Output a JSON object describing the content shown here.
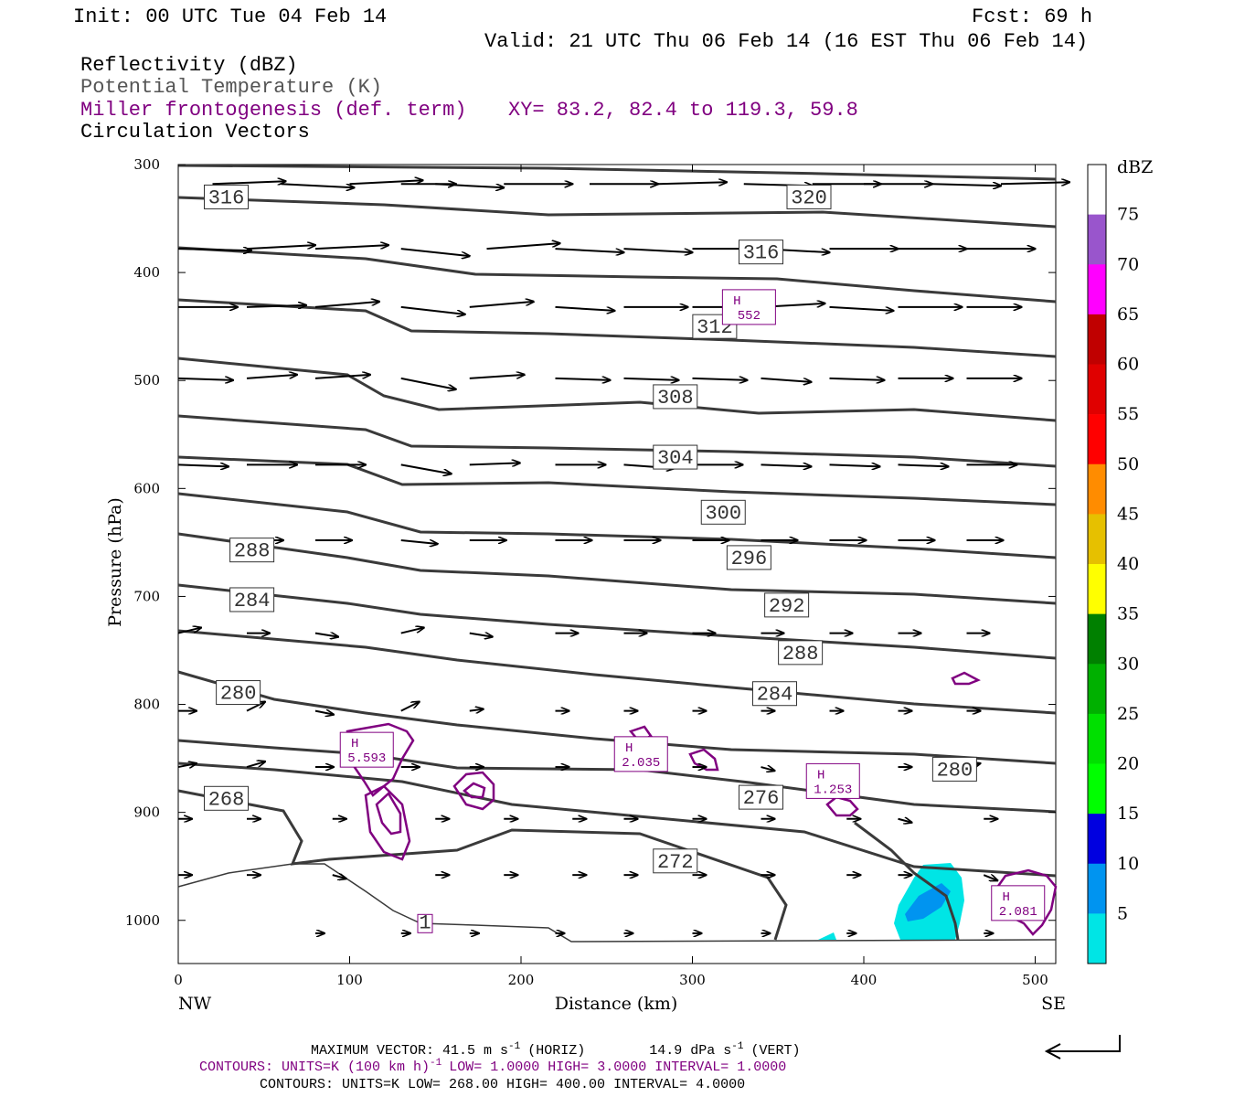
{
  "header": {
    "init": "Init: 00 UTC Tue 04 Feb 14",
    "fcst": "Fcst:   69 h",
    "valid": "Valid: 21 UTC Thu 06 Feb 14 (16 EST Thu 06 Feb 14)",
    "field1": "Reflectivity (dBZ)",
    "field2": "Potential Temperature (K)",
    "field3": "Miller frontogenesis (def. term)",
    "xy": "XY=  83.2, 82.4 to 119.3, 59.8",
    "field4": "Circulation Vectors"
  },
  "colors": {
    "theta": "#3a3a3a",
    "fronto": "#800080",
    "ref_light": "#00e5e5",
    "ref_mid": "#0094f0"
  },
  "chart_data": {
    "type": "cross-section",
    "xlabel": "Distance (km)",
    "ylabel": "Pressure (hPa)",
    "x_ticks": [
      "0",
      "100",
      "200",
      "300",
      "400",
      "500"
    ],
    "y_ticks": [
      "300",
      "400",
      "500",
      "600",
      "700",
      "800",
      "900",
      "1000"
    ],
    "xlim": [
      0,
      512
    ],
    "ylim": [
      300,
      1040
    ],
    "left_end": "NW",
    "right_end": "SE",
    "colorbar": {
      "unit": "dBZ",
      "labels": [
        "75",
        "70",
        "65",
        "60",
        "55",
        "50",
        "45",
        "40",
        "35",
        "30",
        "25",
        "20",
        "15",
        "10",
        "5"
      ],
      "colors": [
        "#ffffff",
        "#9955cc",
        "#ff00ff",
        "#c00000",
        "#e00000",
        "#ff0000",
        "#ff8c00",
        "#e6c000",
        "#ffff00",
        "#008000",
        "#00b000",
        "#00e000",
        "#00ff00",
        "#0000e0",
        "#0094f0",
        "#00e5e5",
        "#ffffff"
      ]
    },
    "theta_labels": [
      {
        "text": "316",
        "x": 28,
        "p": 330
      },
      {
        "text": "320",
        "x": 368,
        "p": 330
      },
      {
        "text": "316",
        "x": 340,
        "p": 381
      },
      {
        "text": "312",
        "x": 313,
        "p": 450
      },
      {
        "text": "308",
        "x": 290,
        "p": 515
      },
      {
        "text": "304",
        "x": 290,
        "p": 571
      },
      {
        "text": "300",
        "x": 318,
        "p": 622
      },
      {
        "text": "296",
        "x": 333,
        "p": 664
      },
      {
        "text": "288",
        "x": 43,
        "p": 657
      },
      {
        "text": "292",
        "x": 355,
        "p": 708
      },
      {
        "text": "284",
        "x": 43,
        "p": 703
      },
      {
        "text": "288",
        "x": 363,
        "p": 752
      },
      {
        "text": "284",
        "x": 348,
        "p": 790
      },
      {
        "text": "280",
        "x": 35,
        "p": 789
      },
      {
        "text": "280",
        "x": 453,
        "p": 860
      },
      {
        "text": "276",
        "x": 340,
        "p": 886
      },
      {
        "text": "268",
        "x": 28,
        "p": 887
      },
      {
        "text": "272",
        "x": 290,
        "p": 945
      },
      {
        "text": "1",
        "x": 144,
        "p": 1003
      }
    ],
    "fronto_maxima": [
      {
        "label": "H",
        "value": "552",
        "x": 333,
        "p": 432
      },
      {
        "label": "H",
        "value": "5.593",
        "x": 110,
        "p": 842
      },
      {
        "label": "H",
        "value": "2.035",
        "x": 270,
        "p": 846
      },
      {
        "label": "H",
        "value": "1.253",
        "x": 382,
        "p": 871
      },
      {
        "label": "H",
        "value": "2.081",
        "x": 490,
        "p": 984
      }
    ],
    "footer": {
      "max_vector": "MAXIMUM VECTOR:  41.5 m s",
      "horiz": "(HORIZ)",
      "vert_value": "14.9 dPa s",
      "vert": "(VERT)",
      "contours1": "CONTOURS:  UNITS=K (100 km h)",
      "contours1_rest": "LOW=   1.0000      HIGH=   3.0000      INTERVAL=    1.0000",
      "contours2": "CONTOURS:  UNITS=K  LOW=   268.00      HIGH=   400.00      INTERVAL=    4.0000",
      "exp": "-1"
    }
  }
}
